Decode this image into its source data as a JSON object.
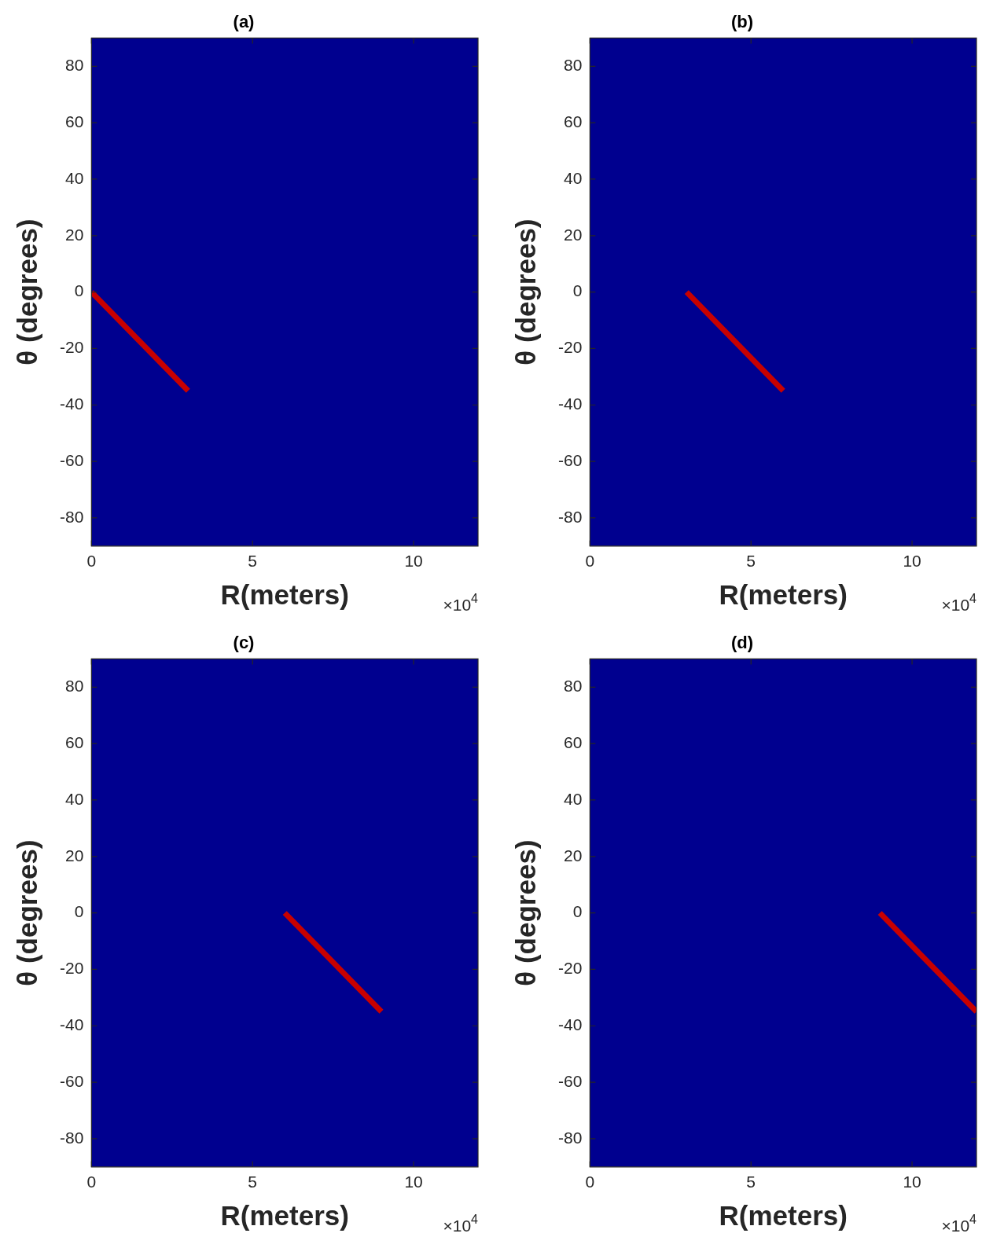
{
  "chart_data": [
    {
      "type": "line",
      "title": "(a)",
      "xlabel": "R(meters)",
      "ylabel": "θ (degrees)",
      "x": [
        0,
        3
      ],
      "series": [
        {
          "color": "#c80000",
          "values": [
            0,
            -35
          ]
        }
      ],
      "xlim": [
        0,
        12
      ],
      "xticks": [
        0,
        5,
        10
      ],
      "ylim": [
        -90,
        90
      ],
      "yticks": [
        -80,
        -60,
        -40,
        -20,
        0,
        20,
        40,
        60,
        80
      ],
      "annotations": [
        "×10$^{4}$"
      ],
      "legend": false,
      "marker": "none"
    },
    {
      "type": "line",
      "title": "(b)",
      "xlabel": "R(meters)",
      "ylabel": "θ (degrees)",
      "x": [
        3,
        6
      ],
      "series": [
        {
          "color": "#c80000",
          "values": [
            0,
            -35
          ]
        }
      ],
      "xlim": [
        0,
        12
      ],
      "xticks": [
        0,
        5,
        10
      ],
      "ylim": [
        -90,
        90
      ],
      "yticks": [
        -80,
        -60,
        -40,
        -20,
        0,
        20,
        40,
        60,
        80
      ],
      "annotations": [
        "×10$^{4}$"
      ],
      "legend": false,
      "marker": "none"
    },
    {
      "type": "line",
      "title": "(c)",
      "xlabel": "R(meters)",
      "ylabel": "θ (degrees)",
      "x": [
        6,
        9
      ],
      "series": [
        {
          "color": "#c80000",
          "values": [
            0,
            -35
          ]
        }
      ],
      "xlim": [
        0,
        12
      ],
      "xticks": [
        0,
        5,
        10
      ],
      "ylim": [
        -90,
        90
      ],
      "yticks": [
        -80,
        -60,
        -40,
        -20,
        0,
        20,
        40,
        60,
        80
      ],
      "annotations": [
        "×10$^{4}$"
      ],
      "legend": false,
      "marker": "none"
    },
    {
      "type": "line",
      "title": "(d)",
      "xlabel": "R(meters)",
      "ylabel": "θ (degrees)",
      "x": [
        9,
        12
      ],
      "series": [
        {
          "color": "#c80000",
          "values": [
            0,
            -35
          ]
        }
      ],
      "xlim": [
        0,
        12
      ],
      "xticks": [
        0,
        5,
        10
      ],
      "ylim": [
        -90,
        90
      ],
      "yticks": [
        -80,
        -60,
        -40,
        -20,
        0,
        20,
        40,
        60,
        80
      ],
      "annotations": [
        "×10$^{4}$"
      ],
      "legend": false,
      "marker": "none"
    }
  ]
}
